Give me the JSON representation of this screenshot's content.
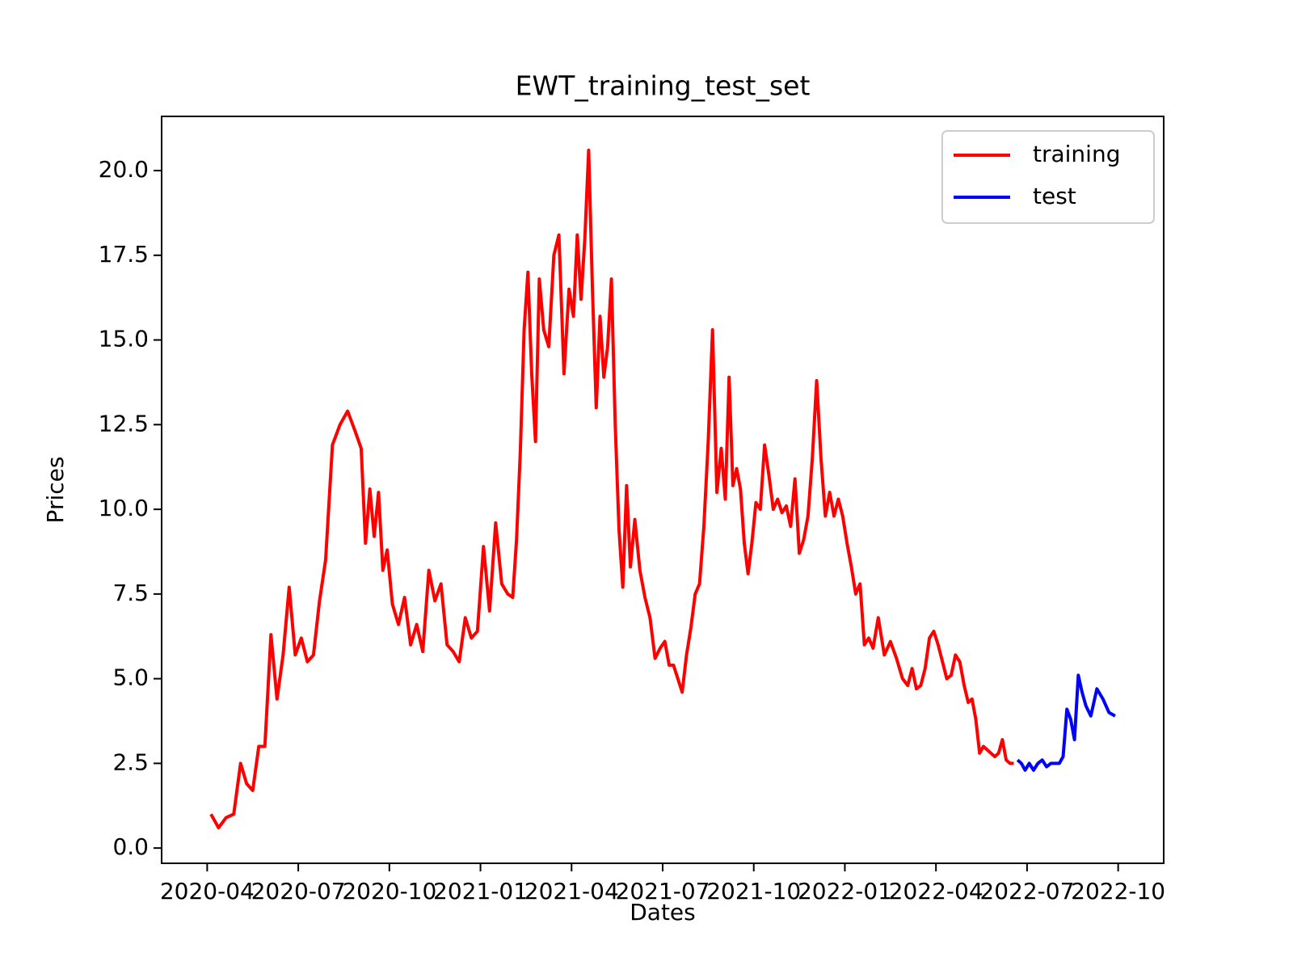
{
  "chart_data": {
    "type": "line",
    "title": "EWT_training_test_set",
    "xlabel": "Dates",
    "ylabel": "Prices",
    "xlim": [
      "2020-02",
      "2022-11"
    ],
    "xticks": [
      "2020-04",
      "2020-07",
      "2020-10",
      "2021-01",
      "2021-04",
      "2021-07",
      "2021-10",
      "2022-01",
      "2022-04",
      "2022-07",
      "2022-10"
    ],
    "ylim": [
      -0.45,
      21.6
    ],
    "yticks": [
      {
        "value": 0,
        "label": "0.0"
      },
      2.5,
      {
        "value": 5,
        "label": "5.0"
      },
      7.5,
      {
        "value": 10,
        "label": "10.0"
      },
      12.5,
      {
        "value": 15,
        "label": "15.0"
      },
      17.5,
      {
        "value": 20,
        "label": "20.0"
      }
    ],
    "legend": "upper right",
    "series": [
      {
        "name": "training",
        "color": "#ff0000",
        "x": [
          "2020-04",
          "2020-04",
          "2020-04",
          "2020-04",
          "2020-05",
          "2020-05",
          "2020-05",
          "2020-05",
          "2020-05",
          "2020-06",
          "2020-06",
          "2020-06",
          "2020-06",
          "2020-06",
          "2020-07",
          "2020-07",
          "2020-07",
          "2020-07",
          "2020-07",
          "2020-08",
          "2020-08",
          "2020-08",
          "2020-08",
          "2020-09",
          "2020-09",
          "2020-09",
          "2020-09",
          "2020-09",
          "2020-09",
          "2020-09",
          "2020-10",
          "2020-10",
          "2020-10",
          "2020-10",
          "2020-10",
          "2020-11",
          "2020-11",
          "2020-11",
          "2020-11",
          "2020-11",
          "2020-12",
          "2020-12",
          "2020-12",
          "2020-12",
          "2020-12",
          "2021-01",
          "2021-01",
          "2021-01",
          "2021-01",
          "2021-01",
          "2021-02",
          "2021-02",
          "2021-02",
          "2021-02",
          "2021-02",
          "2021-02",
          "2021-02",
          "2021-02",
          "2021-03",
          "2021-03",
          "2021-03",
          "2021-03",
          "2021-03",
          "2021-03",
          "2021-04",
          "2021-04",
          "2021-04",
          "2021-04",
          "2021-04",
          "2021-04",
          "2021-04",
          "2021-04",
          "2021-05",
          "2021-05",
          "2021-05",
          "2021-05",
          "2021-05",
          "2021-05",
          "2021-05",
          "2021-05",
          "2021-06",
          "2021-06",
          "2021-06",
          "2021-06",
          "2021-06",
          "2021-06",
          "2021-07",
          "2021-07",
          "2021-07",
          "2021-07",
          "2021-07",
          "2021-07",
          "2021-07",
          "2021-08",
          "2021-08",
          "2021-08",
          "2021-08",
          "2021-08",
          "2021-08",
          "2021-08",
          "2021-09",
          "2021-09",
          "2021-09",
          "2021-09",
          "2021-09",
          "2021-09",
          "2021-09",
          "2021-09",
          "2021-10",
          "2021-10",
          "2021-10",
          "2021-10",
          "2021-10",
          "2021-10",
          "2021-10",
          "2021-11",
          "2021-11",
          "2021-11",
          "2021-11",
          "2021-11",
          "2021-11",
          "2021-11",
          "2021-12",
          "2021-12",
          "2021-12",
          "2021-12",
          "2021-12",
          "2021-12",
          "2021-12",
          "2022-01",
          "2022-01",
          "2022-01",
          "2022-01",
          "2022-01",
          "2022-01",
          "2022-01",
          "2022-02",
          "2022-02",
          "2022-02",
          "2022-02",
          "2022-02",
          "2022-03",
          "2022-03",
          "2022-03",
          "2022-03",
          "2022-03",
          "2022-03",
          "2022-03",
          "2022-04",
          "2022-04",
          "2022-04",
          "2022-04",
          "2022-04",
          "2022-04",
          "2022-04",
          "2022-05",
          "2022-05",
          "2022-05",
          "2022-05",
          "2022-05",
          "2022-05",
          "2022-05",
          "2022-05",
          "2022-06",
          "2022-06",
          "2022-06",
          "2022-06",
          "2022-06"
        ],
        "values": [
          1.0,
          0.6,
          0.9,
          1.0,
          2.5,
          1.9,
          1.7,
          3.0,
          3.0,
          6.3,
          4.4,
          5.7,
          7.7,
          5.7,
          6.2,
          5.5,
          5.7,
          7.3,
          8.5,
          11.9,
          12.5,
          12.9,
          12.3,
          11.8,
          9.0,
          10.6,
          9.2,
          10.5,
          8.2,
          8.8,
          7.2,
          6.6,
          7.4,
          6.0,
          6.6,
          5.8,
          8.2,
          7.3,
          7.8,
          6.0,
          5.8,
          5.5,
          6.8,
          6.2,
          6.4,
          8.9,
          7.0,
          9.6,
          7.8,
          7.5,
          7.4,
          9.1,
          11.7,
          15.3,
          17.0,
          14.0,
          12.0,
          16.8,
          15.3,
          14.8,
          17.5,
          18.1,
          14.0,
          16.5,
          15.7,
          18.1,
          16.2,
          18.0,
          20.6,
          16.5,
          13.0,
          15.7,
          13.9,
          14.8,
          16.8,
          12.5,
          9.4,
          7.7,
          10.7,
          8.3,
          9.7,
          8.2,
          7.4,
          6.8,
          5.6,
          5.9,
          6.1,
          5.4,
          5.4,
          5.0,
          4.6,
          5.7,
          6.5,
          7.5,
          7.8,
          9.5,
          12.0,
          15.3,
          10.5,
          11.8,
          10.3,
          13.9,
          10.7,
          11.2,
          10.6,
          9.0,
          8.1,
          9.0,
          10.2,
          10.0,
          11.9,
          11.0,
          10.0,
          10.3,
          9.9,
          10.1,
          9.5,
          10.9,
          8.7,
          9.1,
          9.8,
          11.5,
          13.8,
          11.5,
          9.8,
          10.5,
          9.8,
          10.3,
          9.8,
          9.0,
          8.3,
          7.5,
          7.8,
          6.0,
          6.2,
          5.9,
          6.8,
          5.7,
          6.1,
          5.6,
          5.0,
          4.8,
          5.3,
          4.7,
          4.8,
          5.3,
          6.2,
          6.4,
          6.0,
          5.5,
          5.0,
          5.1,
          5.7,
          5.5,
          4.8,
          4.3,
          4.4,
          3.8,
          2.8,
          3.0,
          2.9,
          2.8,
          2.7,
          2.8,
          3.2,
          2.6,
          2.5,
          2.5
        ]
      },
      {
        "name": "test",
        "color": "#0000ff",
        "x": [
          "2022-06",
          "2022-06",
          "2022-06",
          "2022-07",
          "2022-07",
          "2022-07",
          "2022-07",
          "2022-07",
          "2022-07",
          "2022-07",
          "2022-08",
          "2022-08",
          "2022-08",
          "2022-08",
          "2022-08",
          "2022-08",
          "2022-08",
          "2022-08",
          "2022-09",
          "2022-09",
          "2022-09",
          "2022-09",
          "2022-09"
        ],
        "values": [
          2.6,
          2.5,
          2.3,
          2.5,
          2.3,
          2.5,
          2.6,
          2.4,
          2.5,
          2.5,
          2.5,
          2.7,
          4.1,
          3.8,
          3.2,
          5.1,
          4.6,
          4.2,
          3.9,
          4.7,
          4.4,
          4.0,
          3.9
        ]
      }
    ]
  }
}
